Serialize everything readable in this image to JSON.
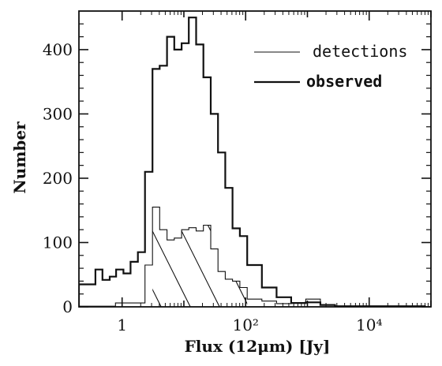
{
  "chart_data": {
    "type": "histogram",
    "title": "",
    "xlabel": "Flux (12μm) [Jy]",
    "ylabel": "Number",
    "x_scale": "log",
    "xlim": [
      0.2,
      100000
    ],
    "ylim": [
      0,
      460
    ],
    "x_ticks": [
      {
        "value": 1,
        "label": "1"
      },
      {
        "value": 100,
        "label": "10²"
      },
      {
        "value": 10000,
        "label": "10⁴"
      }
    ],
    "y_ticks": [
      0,
      100,
      200,
      300,
      400
    ],
    "series": [
      {
        "name": "detections",
        "style": "thin",
        "bins": [
          {
            "x0": 0.2,
            "x1": 0.78,
            "y": 1
          },
          {
            "x0": 0.78,
            "x1": 1.34,
            "y": 6
          },
          {
            "x0": 1.34,
            "x1": 2.35,
            "y": 6
          },
          {
            "x0": 2.35,
            "x1": 3.1,
            "y": 65
          },
          {
            "x0": 3.1,
            "x1": 4.06,
            "y": 155
          },
          {
            "x0": 4.06,
            "x1": 5.33,
            "y": 120
          },
          {
            "x0": 5.33,
            "x1": 7.0,
            "y": 104
          },
          {
            "x0": 7.0,
            "x1": 9.2,
            "y": 107
          },
          {
            "x0": 9.2,
            "x1": 12.0,
            "y": 120
          },
          {
            "x0": 12.0,
            "x1": 15.8,
            "y": 123
          },
          {
            "x0": 15.8,
            "x1": 20.7,
            "y": 118
          },
          {
            "x0": 20.7,
            "x1": 27.2,
            "y": 127
          },
          {
            "x0": 27.2,
            "x1": 35.7,
            "y": 90
          },
          {
            "x0": 35.7,
            "x1": 46.8,
            "y": 55
          },
          {
            "x0": 46.8,
            "x1": 61.4,
            "y": 43
          },
          {
            "x0": 61.4,
            "x1": 80.6,
            "y": 40
          },
          {
            "x0": 80.6,
            "x1": 106,
            "y": 30
          },
          {
            "x0": 106,
            "x1": 183,
            "y": 12
          },
          {
            "x0": 183,
            "x1": 317,
            "y": 9
          },
          {
            "x0": 317,
            "x1": 546,
            "y": 5
          },
          {
            "x0": 546,
            "x1": 941,
            "y": 6
          },
          {
            "x0": 941,
            "x1": 1620,
            "y": 12
          },
          {
            "x0": 1620,
            "x1": 2790,
            "y": 3
          },
          {
            "x0": 2790,
            "x1": 80000,
            "y": 1
          }
        ]
      },
      {
        "name": "observed",
        "style": "thick",
        "bins": [
          {
            "x0": 0.2,
            "x1": 0.37,
            "y": 35
          },
          {
            "x0": 0.37,
            "x1": 0.48,
            "y": 58
          },
          {
            "x0": 0.48,
            "x1": 0.63,
            "y": 42
          },
          {
            "x0": 0.63,
            "x1": 0.8,
            "y": 47
          },
          {
            "x0": 0.8,
            "x1": 1.05,
            "y": 58
          },
          {
            "x0": 1.05,
            "x1": 1.37,
            "y": 52
          },
          {
            "x0": 1.37,
            "x1": 1.8,
            "y": 70
          },
          {
            "x0": 1.8,
            "x1": 2.35,
            "y": 85
          },
          {
            "x0": 2.35,
            "x1": 3.1,
            "y": 210
          },
          {
            "x0": 3.1,
            "x1": 4.06,
            "y": 370
          },
          {
            "x0": 4.06,
            "x1": 5.33,
            "y": 375
          },
          {
            "x0": 5.33,
            "x1": 7.0,
            "y": 420
          },
          {
            "x0": 7.0,
            "x1": 9.2,
            "y": 400
          },
          {
            "x0": 9.2,
            "x1": 12.0,
            "y": 410
          },
          {
            "x0": 12.0,
            "x1": 15.8,
            "y": 450
          },
          {
            "x0": 15.8,
            "x1": 20.7,
            "y": 408
          },
          {
            "x0": 20.7,
            "x1": 27.2,
            "y": 357
          },
          {
            "x0": 27.2,
            "x1": 35.7,
            "y": 300
          },
          {
            "x0": 35.7,
            "x1": 46.8,
            "y": 240
          },
          {
            "x0": 46.8,
            "x1": 61.4,
            "y": 185
          },
          {
            "x0": 61.4,
            "x1": 80.6,
            "y": 122
          },
          {
            "x0": 80.6,
            "x1": 106,
            "y": 110
          },
          {
            "x0": 106,
            "x1": 183,
            "y": 65
          },
          {
            "x0": 183,
            "x1": 317,
            "y": 30
          },
          {
            "x0": 317,
            "x1": 546,
            "y": 15
          },
          {
            "x0": 546,
            "x1": 941,
            "y": 6
          },
          {
            "x0": 941,
            "x1": 1620,
            "y": 7
          },
          {
            "x0": 1620,
            "x1": 2790,
            "y": 3
          },
          {
            "x0": 2790,
            "x1": 80000,
            "y": 1
          }
        ]
      }
    ],
    "hatched_region": {
      "x_range": [
        3.1,
        106
      ],
      "note_series": "detections"
    },
    "legend": {
      "placement": "top-right",
      "entries": [
        {
          "label": "detections",
          "style": "thin"
        },
        {
          "label": "observed",
          "style": "thick"
        }
      ]
    }
  }
}
